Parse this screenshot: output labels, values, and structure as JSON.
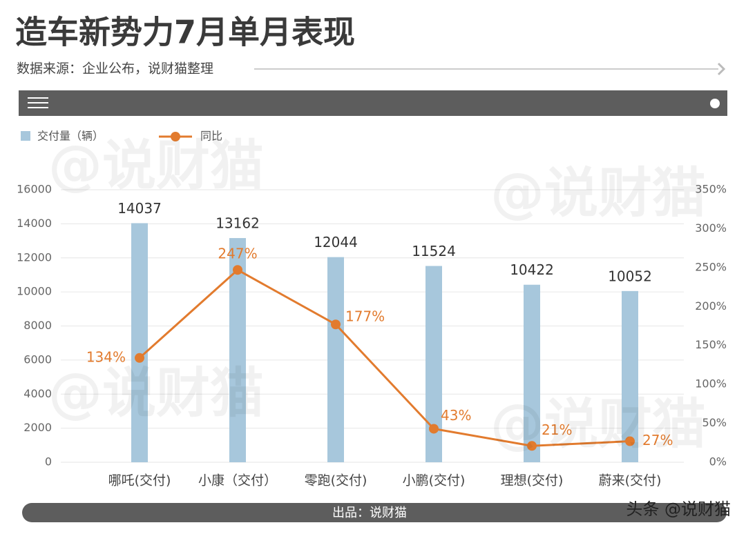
{
  "title": "造车新势力7月单月表现",
  "subtitle": "数据来源：企业公布，说财猫整理",
  "footer": "出品：说财猫",
  "watermark": "@说财猫",
  "source_badge": "头条 @说财猫",
  "chart_data": {
    "type": "bar_line",
    "categories": [
      "哪吒(交付)",
      "小康（交付）",
      "零跑(交付)",
      "小鹏(交付)",
      "理想(交付)",
      "蔚来(交付)"
    ],
    "series": [
      {
        "name": "交付量（辆）",
        "type": "bar",
        "color": "#a7c7dc",
        "values": [
          14037,
          13162,
          12044,
          11524,
          10422,
          10052
        ]
      },
      {
        "name": "同比",
        "type": "line",
        "axis": "y2",
        "color": "#e27b2e",
        "values": [
          134,
          247,
          177,
          43,
          21,
          27
        ],
        "value_labels": [
          "134%",
          "247%",
          "177%",
          "43%",
          "21%",
          "27%"
        ]
      }
    ],
    "ylim": [
      0,
      16000
    ],
    "yticks": [
      0,
      2000,
      4000,
      6000,
      8000,
      10000,
      12000,
      14000,
      16000
    ],
    "y2lim": [
      0,
      350
    ],
    "y2ticks": [
      {
        "value": 0,
        "label": "0%"
      },
      {
        "value": 50,
        "label": "50%"
      },
      {
        "value": 100,
        "label": "100%"
      },
      {
        "value": 150,
        "label": "150%"
      },
      {
        "value": 200,
        "label": "200%"
      },
      {
        "value": 250,
        "label": "250%"
      },
      {
        "value": 300,
        "label": "300%"
      },
      {
        "value": 350,
        "label": "350%"
      }
    ],
    "grid": true
  }
}
